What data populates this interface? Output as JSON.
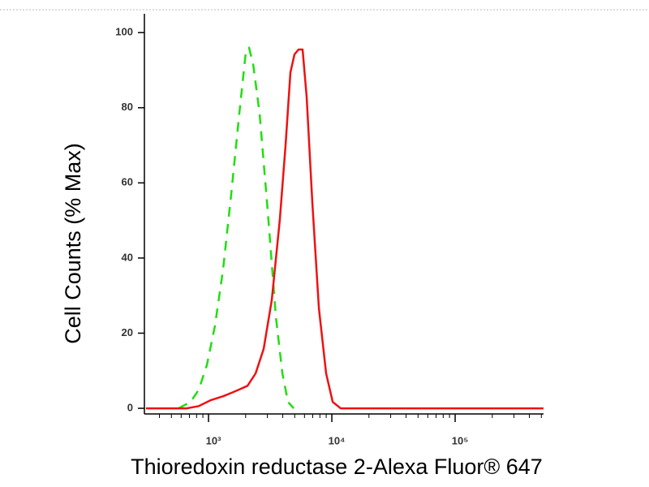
{
  "chart_data": {
    "type": "line",
    "x_label": "Thioredoxin reductase 2-Alexa Fluor® 647",
    "y_label": "Cell Counts (% Max)",
    "x_scale": "log",
    "xlim": [
      302,
      521000
    ],
    "xticks": [
      {
        "value": 1000,
        "label": "10³"
      },
      {
        "value": 10000,
        "label": "10⁴"
      },
      {
        "value": 100000,
        "label": "10⁵"
      }
    ],
    "ylim": [
      -1.5,
      105
    ],
    "yticks": [
      0,
      20,
      40,
      60,
      80,
      100
    ],
    "series": [
      {
        "color": "#22dd11",
        "line_style": "dashed",
        "x": [
          571,
          716,
          834,
          970,
          1129,
          1313,
          1528,
          1778,
          2009,
          2133,
          2301,
          2596,
          3020,
          3516,
          3971,
          4413,
          4909
        ],
        "values": [
          0,
          1.7,
          5,
          11.5,
          22,
          37,
          57,
          78.5,
          95,
          96,
          91.5,
          78.5,
          52.6,
          24.5,
          9.3,
          1.7,
          0
        ]
      },
      {
        "color": "#ee1111",
        "line_style": "solid",
        "x": [
          311,
          664,
          834,
          1047,
          1313,
          1528,
          1778,
          2070,
          2410,
          2801,
          3258,
          3793,
          4217,
          4613,
          4978,
          5373,
          5794,
          6252,
          6950,
          7852,
          8995,
          10160,
          11800,
          18620,
          520000
        ],
        "values": [
          0,
          0,
          0.6,
          2.2,
          3.2,
          4.1,
          5,
          6,
          9.3,
          15.8,
          28.8,
          50.4,
          70,
          89.4,
          94.2,
          95.5,
          95.5,
          82.9,
          54.8,
          26.6,
          9.3,
          1.7,
          0,
          0,
          0
        ]
      }
    ]
  }
}
